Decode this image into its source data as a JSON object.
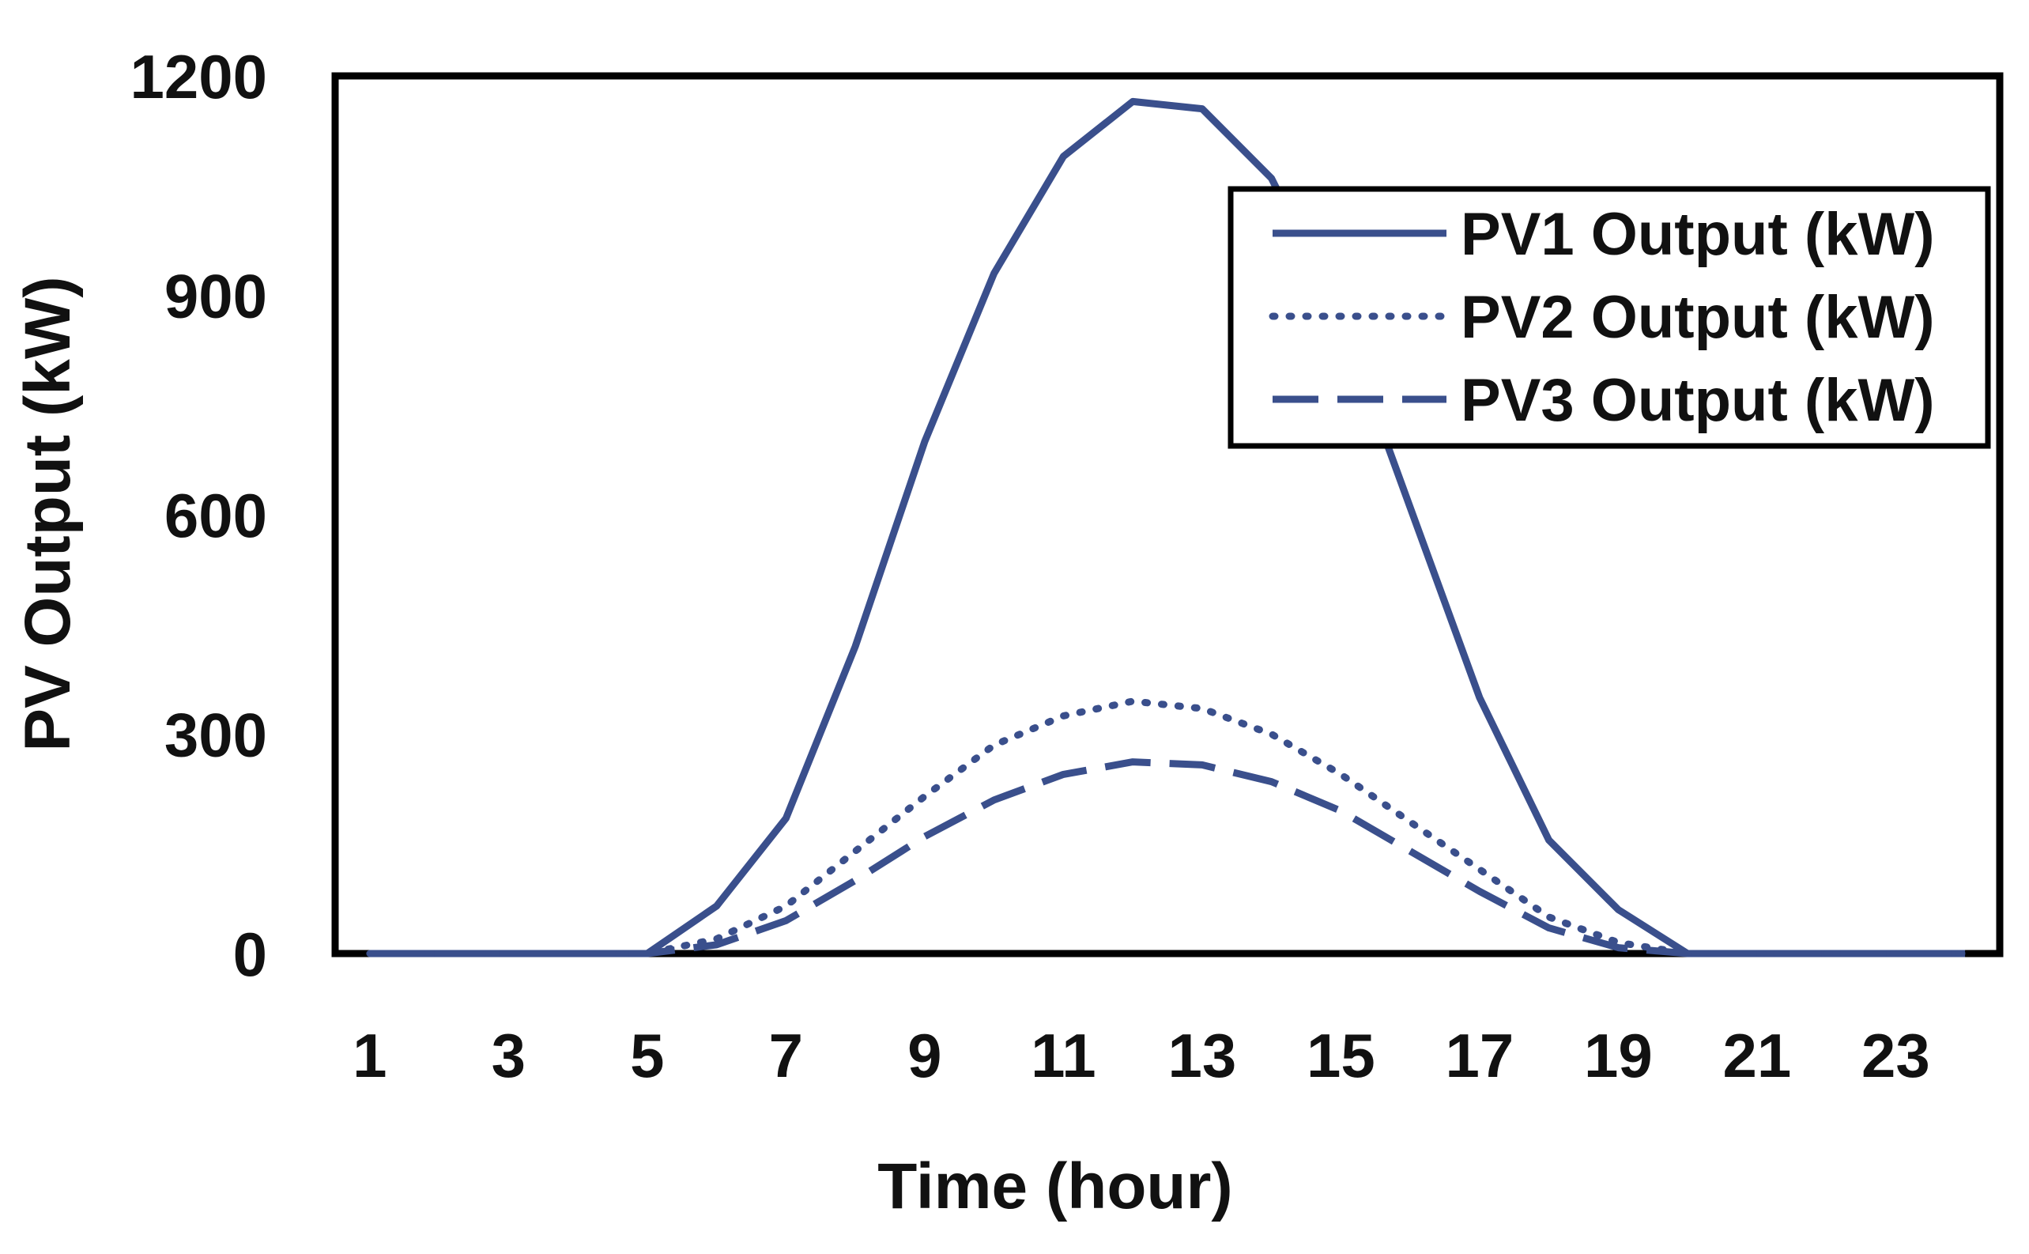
{
  "chart_data": {
    "type": "line",
    "title": "",
    "xlabel": "Time (hour)",
    "ylabel": "PV Output (kW)",
    "x": [
      1,
      2,
      3,
      4,
      5,
      6,
      7,
      8,
      9,
      10,
      11,
      12,
      13,
      14,
      15,
      16,
      17,
      18,
      19,
      20,
      21,
      22,
      23,
      24
    ],
    "xticks": [
      1,
      3,
      5,
      7,
      9,
      11,
      13,
      15,
      17,
      19,
      21,
      23
    ],
    "yticks": [
      0,
      300,
      600,
      900,
      1200
    ],
    "ylim": [
      0,
      1200
    ],
    "grid": false,
    "legend_position": "top-right",
    "series_color": "#3a4f8c",
    "series": [
      {
        "name": "PV1 Output (kW)",
        "style": "solid",
        "values": [
          0,
          0,
          0,
          0,
          0,
          65,
          185,
          420,
          700,
          930,
          1090,
          1165,
          1155,
          1060,
          870,
          610,
          350,
          155,
          60,
          0,
          0,
          0,
          0,
          0
        ]
      },
      {
        "name": "PV2 Output (kW)",
        "style": "dotted",
        "values": [
          0,
          0,
          0,
          0,
          0,
          20,
          65,
          140,
          215,
          285,
          325,
          345,
          335,
          300,
          245,
          180,
          115,
          50,
          15,
          0,
          0,
          0,
          0,
          0
        ]
      },
      {
        "name": "PV3 Output (kW)",
        "style": "dashed",
        "values": [
          0,
          0,
          0,
          0,
          0,
          12,
          45,
          100,
          160,
          210,
          245,
          262,
          258,
          235,
          195,
          140,
          85,
          35,
          8,
          0,
          0,
          0,
          0,
          0
        ]
      }
    ]
  }
}
